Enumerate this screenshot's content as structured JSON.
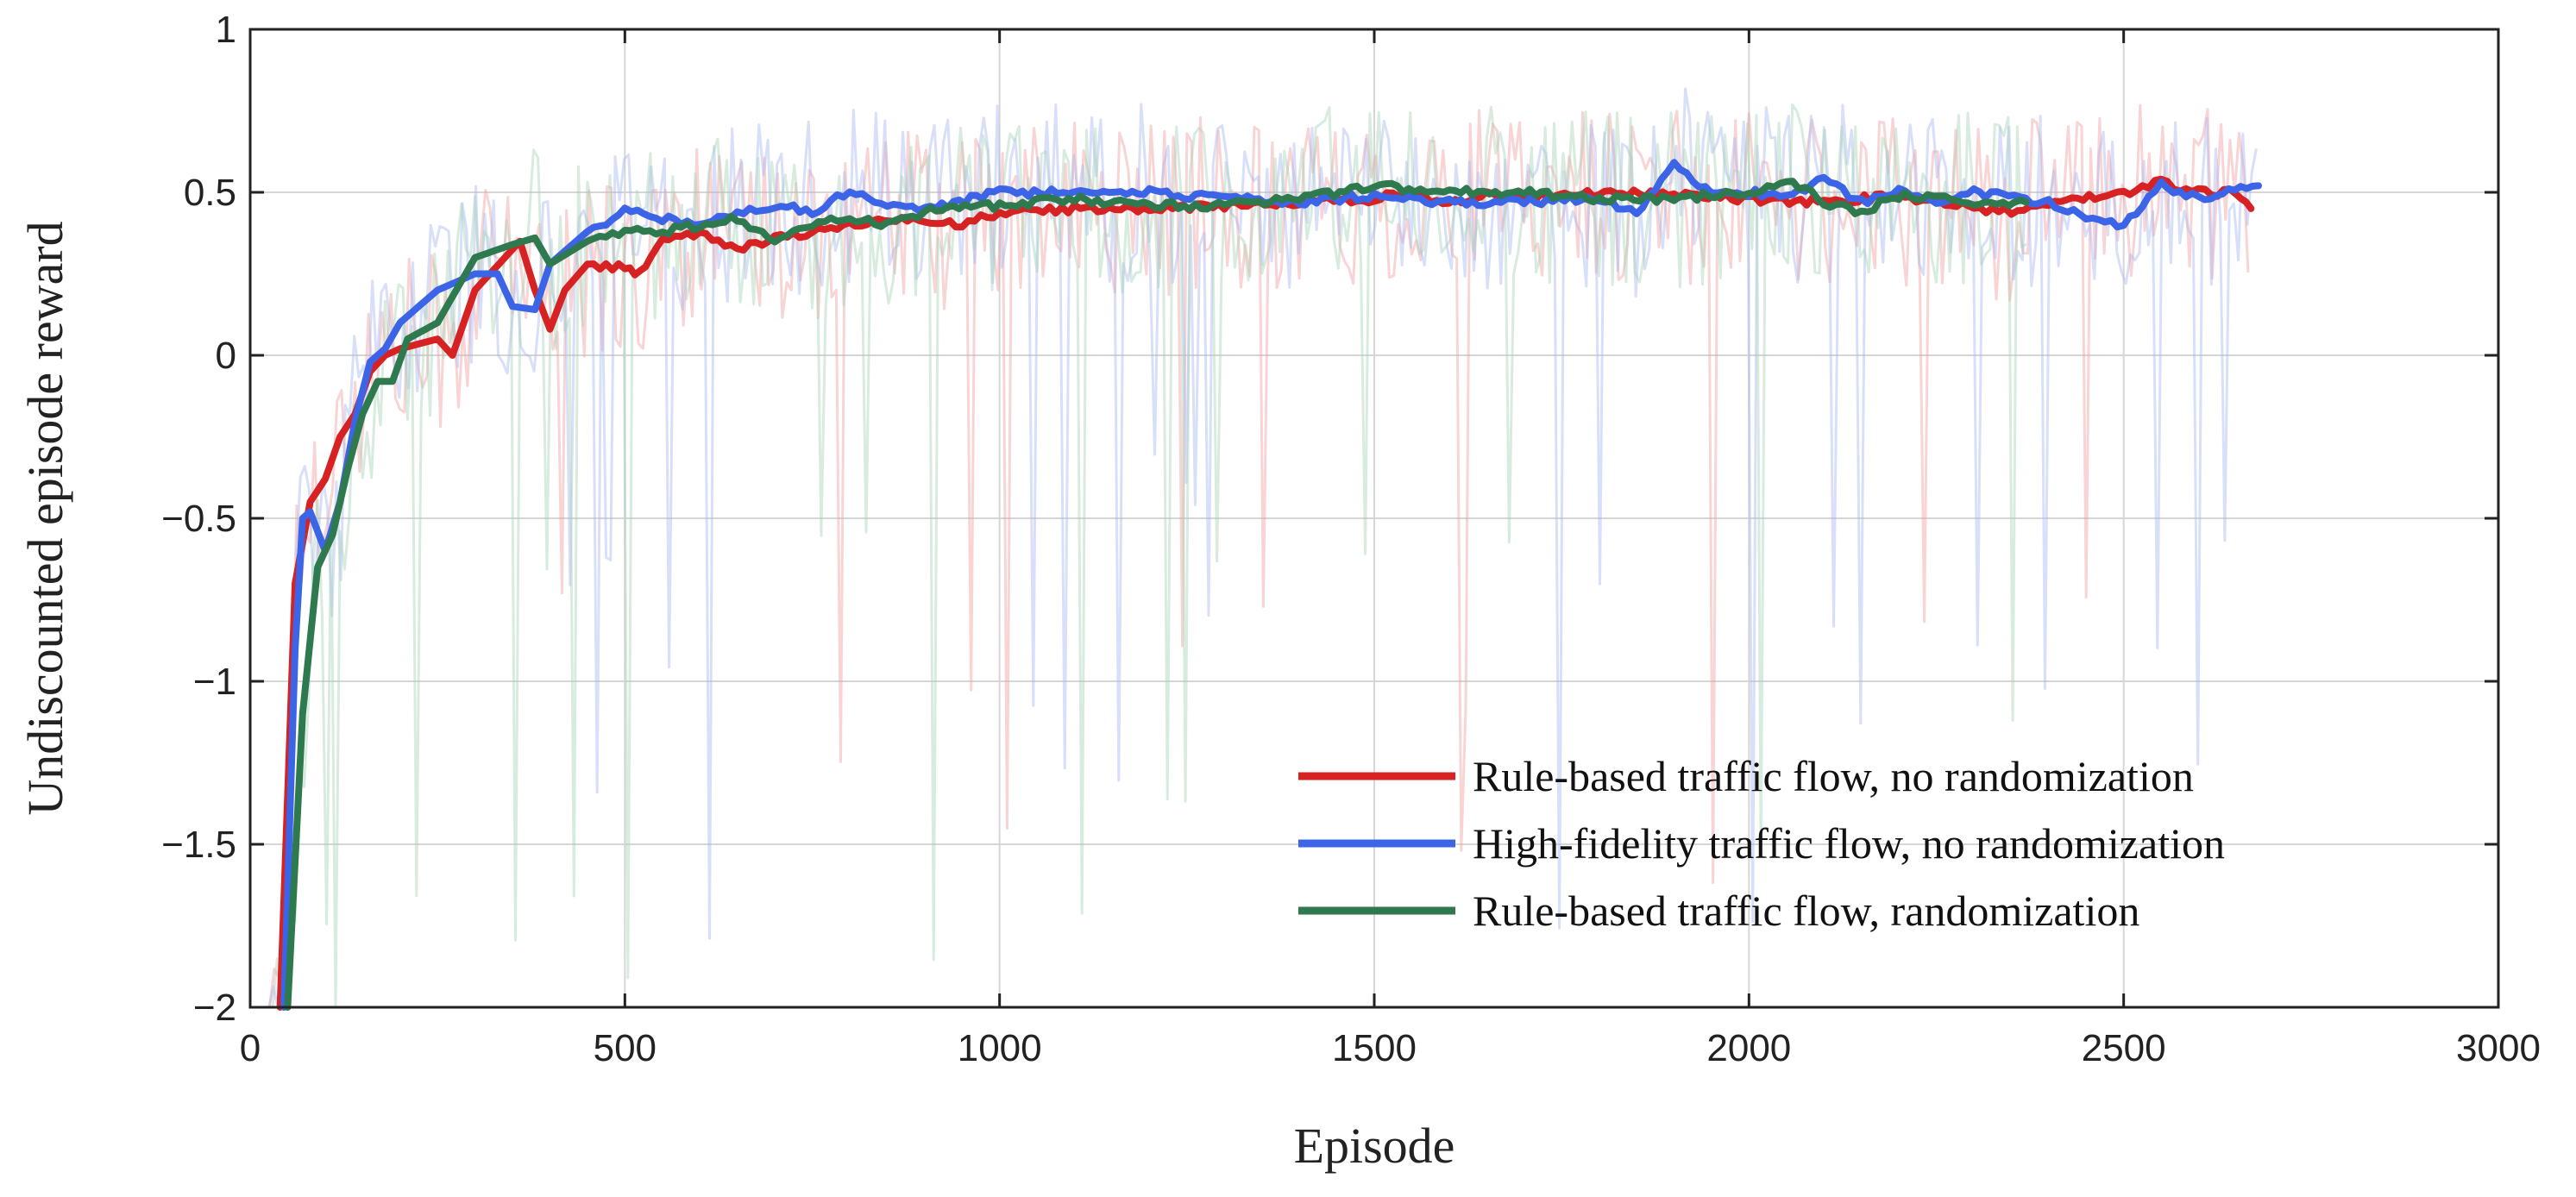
{
  "chart_data": {
    "type": "line",
    "title": "",
    "xlabel": "Episode",
    "ylabel": "Undiscounted episode reward",
    "xlim": [
      0,
      3000
    ],
    "ylim": [
      -2,
      1
    ],
    "xticks": [
      0,
      500,
      1000,
      1500,
      2000,
      2500,
      3000
    ],
    "xtick_labels": [
      "0",
      "500",
      "1000",
      "1500",
      "2000",
      "2500",
      "3000"
    ],
    "yticks": [
      1,
      0.5,
      0,
      -0.5,
      -1,
      -1.5,
      -2
    ],
    "ytick_labels": [
      "1",
      "0.5",
      "0",
      "−0.5",
      "−1",
      "−1.5",
      "−2"
    ],
    "grid": true,
    "legend_position": "bottom-right",
    "raw_episode_traces": "faint per-episode rewards (mostly 0.0 to 0.75, occasional dips to -2) plotted behind each smoothed curve",
    "series": [
      {
        "name": "Rule-based traffic flow, no randomization",
        "color": "#d62222",
        "raw_color": "#f2a0a0",
        "x": [
          40,
          60,
          80,
          100,
          120,
          140,
          160,
          180,
          200,
          250,
          270,
          300,
          340,
          360,
          380,
          400,
          420,
          450,
          500,
          520,
          550,
          600,
          650,
          700,
          750,
          800,
          900,
          950,
          1000,
          1050,
          1100,
          1200,
          1300,
          1400,
          1500,
          1550,
          1600,
          1650,
          1700,
          1800,
          1900,
          2000,
          2100,
          2200,
          2300,
          2350,
          2400,
          2500,
          2550,
          2600,
          2650,
          2670
        ],
        "y": [
          -2.0,
          -0.7,
          -0.45,
          -0.38,
          -0.25,
          -0.18,
          -0.05,
          0.0,
          0.02,
          0.05,
          0.0,
          0.2,
          0.3,
          0.35,
          0.2,
          0.08,
          0.2,
          0.28,
          0.27,
          0.25,
          0.35,
          0.38,
          0.32,
          0.36,
          0.38,
          0.4,
          0.42,
          0.4,
          0.44,
          0.44,
          0.45,
          0.45,
          0.46,
          0.47,
          0.48,
          0.5,
          0.46,
          0.5,
          0.48,
          0.5,
          0.49,
          0.48,
          0.47,
          0.49,
          0.45,
          0.44,
          0.46,
          0.5,
          0.53,
          0.5,
          0.5,
          0.45
        ]
      },
      {
        "name": "High-fidelity traffic flow, no randomization",
        "color": "#3c64e6",
        "raw_color": "#a8b8f2",
        "x": [
          45,
          60,
          70,
          80,
          100,
          120,
          140,
          160,
          180,
          200,
          250,
          300,
          330,
          350,
          380,
          400,
          450,
          500,
          550,
          600,
          650,
          700,
          750,
          800,
          850,
          900,
          1000,
          1100,
          1200,
          1300,
          1400,
          1500,
          1600,
          1700,
          1800,
          1850,
          1900,
          1950,
          2000,
          2050,
          2100,
          2150,
          2200,
          2250,
          2300,
          2400,
          2450,
          2500,
          2550,
          2600,
          2680
        ],
        "y": [
          -2.0,
          -0.9,
          -0.5,
          -0.48,
          -0.6,
          -0.45,
          -0.2,
          -0.02,
          0.02,
          0.1,
          0.2,
          0.25,
          0.25,
          0.15,
          0.14,
          0.28,
          0.38,
          0.44,
          0.42,
          0.4,
          0.44,
          0.46,
          0.44,
          0.5,
          0.46,
          0.45,
          0.5,
          0.5,
          0.5,
          0.48,
          0.47,
          0.49,
          0.47,
          0.47,
          0.48,
          0.44,
          0.58,
          0.5,
          0.5,
          0.48,
          0.54,
          0.47,
          0.5,
          0.47,
          0.5,
          0.47,
          0.43,
          0.4,
          0.52,
          0.48,
          0.52
        ]
      },
      {
        "name": "Rule-based traffic flow, randomization",
        "color": "#2e7a4e",
        "raw_color": "#a8d2b8",
        "x": [
          50,
          70,
          90,
          110,
          130,
          150,
          170,
          190,
          210,
          250,
          300,
          350,
          380,
          400,
          450,
          500,
          550,
          600,
          650,
          700,
          750,
          800,
          850,
          900,
          1000,
          1100,
          1200,
          1300,
          1400,
          1500,
          1600,
          1700,
          1800,
          1900,
          2000,
          2050,
          2100,
          2150,
          2200,
          2300,
          2370
        ],
        "y": [
          -2.0,
          -1.1,
          -0.65,
          -0.55,
          -0.35,
          -0.18,
          -0.08,
          -0.08,
          0.05,
          0.1,
          0.3,
          0.34,
          0.36,
          0.28,
          0.35,
          0.38,
          0.38,
          0.4,
          0.42,
          0.36,
          0.4,
          0.42,
          0.4,
          0.44,
          0.46,
          0.48,
          0.46,
          0.46,
          0.48,
          0.52,
          0.5,
          0.5,
          0.48,
          0.48,
          0.5,
          0.54,
          0.47,
          0.44,
          0.49,
          0.47,
          0.47
        ]
      }
    ]
  }
}
